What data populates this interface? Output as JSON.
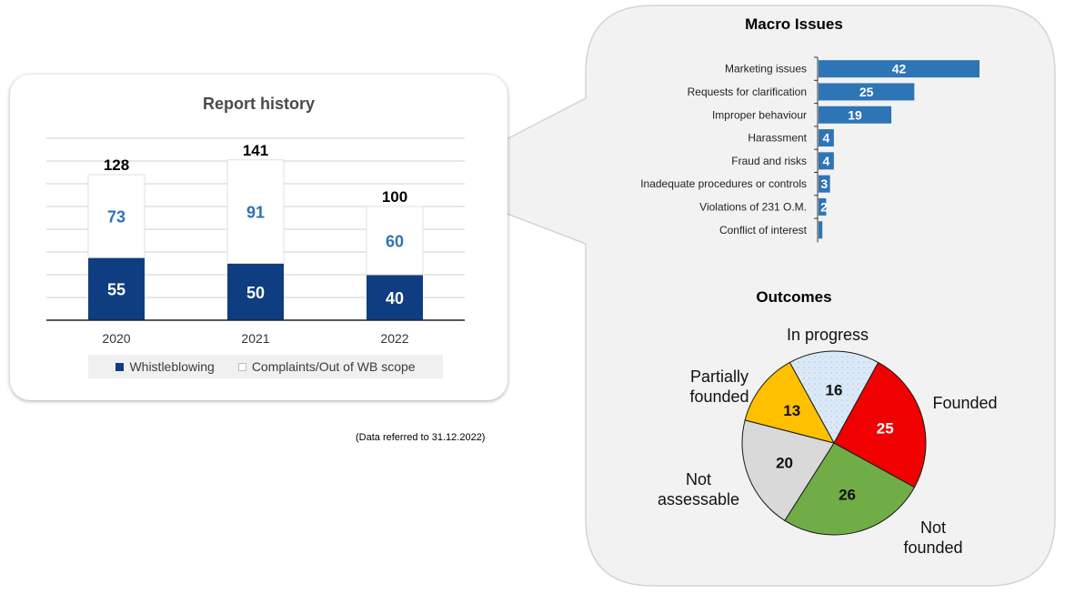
{
  "footnote": "(Data referred to 31.12.2022)",
  "colors": {
    "whistleblowing": "#0e3d82",
    "complaints": "#ffffff",
    "complaints_value_text": "#2e73b5",
    "macro_bar": "#2e75b6",
    "founded": "#f00000",
    "not_founded": "#70ad47",
    "not_assessable": "#d9d9d9",
    "partially_founded": "#ffc000",
    "in_progress": "#dce9f7",
    "panel_bg": "#f2f2f2"
  },
  "chart_data": [
    {
      "type": "bar",
      "stacked": true,
      "title": "Report history",
      "categories": [
        "2020",
        "2021",
        "2022"
      ],
      "series": [
        {
          "name": "Whistleblowing",
          "values": [
            55,
            50,
            40
          ]
        },
        {
          "name": "Complaints/Out of WB scope",
          "values": [
            73,
            91,
            60
          ]
        }
      ],
      "totals": [
        "128",
        "141",
        "100"
      ],
      "ylim": [
        0,
        160
      ],
      "grid": true,
      "legend": "bottom"
    },
    {
      "type": "bar",
      "orientation": "horizontal",
      "title": "Macro Issues",
      "categories": [
        "Marketing issues",
        "Requests for clarification",
        "Improper behaviour",
        "Harassment",
        "Fraud and risks",
        "Inadequate procedures or controls",
        "Violations of 231 O.M.",
        "Conflict of interest"
      ],
      "values": [
        42,
        25,
        19,
        4,
        4,
        3,
        2,
        1
      ],
      "data_labels": [
        "42",
        "25",
        "19",
        "4",
        "4",
        "3",
        "2",
        ""
      ],
      "xlim": [
        0,
        42
      ]
    },
    {
      "type": "pie",
      "title": "Outcomes",
      "categories": [
        "In progress",
        "Founded",
        "Not founded",
        "Not assessable",
        "Partially founded"
      ],
      "labels_display": [
        [
          "In progress"
        ],
        [
          "Founded"
        ],
        [
          "Not",
          "founded"
        ],
        [
          "Not",
          "assessable"
        ],
        [
          "Partially",
          "founded"
        ]
      ],
      "values": [
        16,
        25,
        26,
        20,
        13
      ],
      "data_labels": [
        "16",
        "25",
        "26",
        "20",
        "13"
      ]
    }
  ]
}
